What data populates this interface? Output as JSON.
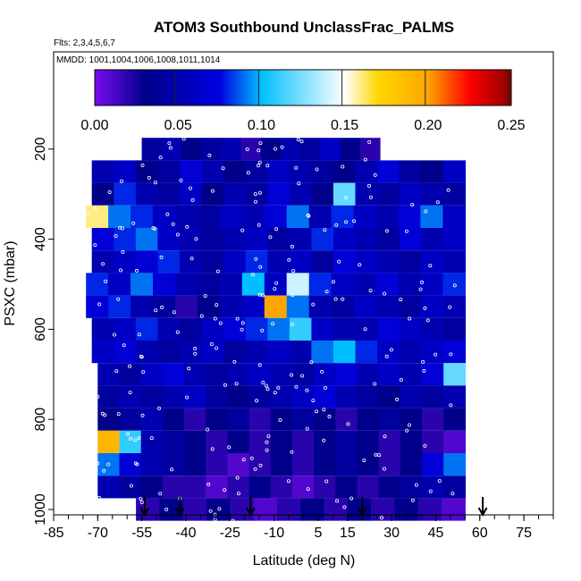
{
  "chart_data": {
    "type": "heatmap",
    "title": "ATOM3 Southbound UnclassFrac_PALMS",
    "subtitle": "Flts: 2,3,4,5,6,7",
    "note": "MMDD: 1001,1004,1006,1008,1011,1014",
    "xlabel": "Latitude (deg N)",
    "ylabel": "PSXC (mbar)",
    "xlim": [
      -85,
      85
    ],
    "ylim": [
      1000,
      0
    ],
    "x_ticks": [
      -85,
      -70,
      -55,
      -40,
      -25,
      -10,
      5,
      15,
      30,
      45,
      60,
      75
    ],
    "y_ticks": [
      200,
      400,
      600,
      800,
      1000
    ],
    "colorbar": {
      "range": [
        0,
        0.25
      ],
      "ticks": [
        "0.00",
        "0.05",
        "0.10",
        "0.15",
        "0.20",
        "0.25"
      ],
      "colors": [
        "#7a0bf0",
        "#00008b",
        "#0000e0",
        "#00bfff",
        "#ffffff",
        "#ffd700",
        "#ffa500",
        "#ff0000",
        "#8b0000"
      ]
    },
    "arrows_latitude": [
      -54,
      -42,
      -18,
      20,
      61
    ],
    "bins": [
      {
        "p": 200,
        "lat": [
          -55,
          26
        ],
        "values": [
          0.04,
          0.05,
          0.03,
          0.04,
          0.05,
          0.02,
          0.03,
          0.05,
          0.04,
          0.06,
          0.03,
          0.02
        ]
      },
      {
        "p": 250,
        "lat": [
          -72,
          55
        ],
        "values": [
          0.05,
          0.06,
          0.03,
          0.04,
          0.07,
          0.05,
          0.03,
          0.04,
          0.06,
          0.05,
          0.04,
          0.03,
          0.05,
          0.07,
          0.04,
          0.03,
          0.06
        ]
      },
      {
        "p": 300,
        "lat": [
          -72,
          55
        ],
        "values": [
          0.03,
          0.08,
          0.05,
          0.04,
          0.06,
          0.03,
          0.05,
          0.04,
          0.07,
          0.05,
          0.03,
          0.12,
          0.05,
          0.04,
          0.06,
          0.05,
          0.04
        ]
      },
      {
        "p": 350,
        "lat": [
          -74,
          55
        ],
        "values": [
          0.16,
          0.09,
          0.08,
          0.06,
          0.05,
          0.04,
          0.06,
          0.05,
          0.07,
          0.09,
          0.05,
          0.08,
          0.06,
          0.05,
          0.07,
          0.09,
          0.06
        ]
      },
      {
        "p": 400,
        "lat": [
          -72,
          55
        ],
        "values": [
          0.07,
          0.08,
          0.09,
          0.06,
          0.05,
          0.04,
          0.05,
          0.06,
          0.04,
          0.05,
          0.08,
          0.06,
          0.05,
          0.04,
          0.07,
          0.05,
          0.06
        ]
      },
      {
        "p": 450,
        "lat": [
          -72,
          55
        ],
        "values": [
          0.05,
          0.06,
          0.07,
          0.08,
          0.05,
          0.04,
          0.06,
          0.08,
          0.05,
          0.06,
          0.04,
          0.07,
          0.06,
          0.05,
          0.04,
          0.06,
          0.05
        ]
      },
      {
        "p": 500,
        "lat": [
          -74,
          55
        ],
        "values": [
          0.08,
          0.06,
          0.09,
          0.07,
          0.05,
          0.04,
          0.05,
          0.1,
          0.06,
          0.14,
          0.08,
          0.06,
          0.05,
          0.07,
          0.05,
          0.06,
          0.08
        ]
      },
      {
        "p": 550,
        "lat": [
          -74,
          55
        ],
        "values": [
          0.07,
          0.08,
          0.05,
          0.04,
          0.02,
          0.03,
          0.05,
          0.06,
          0.2,
          0.09,
          0.05,
          0.04,
          0.06,
          0.05,
          0.04,
          0.06,
          0.05
        ]
      },
      {
        "p": 600,
        "lat": [
          -72,
          55
        ],
        "values": [
          0.05,
          0.06,
          0.08,
          0.05,
          0.04,
          0.06,
          0.07,
          0.08,
          0.09,
          0.11,
          0.06,
          0.05,
          0.05,
          0.07,
          0.06,
          0.05,
          0.04
        ]
      },
      {
        "p": 650,
        "lat": [
          -72,
          55
        ],
        "values": [
          0.06,
          0.07,
          0.05,
          0.04,
          0.05,
          0.06,
          0.04,
          0.05,
          0.06,
          0.05,
          0.09,
          0.1,
          0.08,
          0.06,
          0.05,
          0.06,
          0.07
        ]
      },
      {
        "p": 700,
        "lat": [
          -70,
          55
        ],
        "values": [
          0.05,
          0.04,
          0.06,
          0.07,
          0.05,
          0.04,
          0.05,
          0.06,
          0.05,
          0.04,
          0.06,
          0.07,
          0.05,
          0.06,
          0.05,
          0.07,
          0.12
        ]
      },
      {
        "p": 750,
        "lat": [
          -70,
          55
        ],
        "values": [
          0.04,
          0.05,
          0.04,
          0.05,
          0.06,
          0.04,
          0.03,
          0.04,
          0.05,
          0.06,
          0.07,
          0.05,
          0.04,
          0.03,
          0.05,
          0.04,
          0.05
        ]
      },
      {
        "p": 800,
        "lat": [
          -70,
          55
        ],
        "values": [
          0.03,
          0.04,
          0.05,
          0.03,
          0.02,
          0.03,
          0.04,
          0.02,
          0.03,
          0.04,
          0.03,
          0.02,
          0.03,
          0.04,
          0.03,
          0.02,
          0.03
        ]
      },
      {
        "p": 850,
        "lat": [
          -70,
          55
        ],
        "values": [
          0.19,
          0.11,
          0.05,
          0.04,
          0.03,
          0.02,
          0.03,
          0.02,
          0.03,
          0.02,
          0.03,
          0.04,
          0.03,
          0.02,
          0.03,
          0.02,
          0.01
        ]
      },
      {
        "p": 900,
        "lat": [
          -70,
          55
        ],
        "values": [
          0.09,
          0.07,
          0.05,
          0.04,
          0.03,
          0.02,
          0.01,
          0.02,
          0.03,
          0.02,
          0.03,
          0.04,
          0.03,
          0.02,
          0.03,
          0.07,
          0.09
        ]
      },
      {
        "p": 950,
        "lat": [
          -70,
          55
        ],
        "values": [
          0.05,
          0.04,
          0.03,
          0.02,
          0.02,
          0.01,
          0.02,
          0.03,
          0.02,
          0.01,
          0.02,
          0.03,
          0.02,
          0.03,
          0.04,
          0.05,
          0.04
        ]
      },
      {
        "p": 1000,
        "lat": [
          -57,
          55
        ],
        "values": [
          0.02,
          0.03,
          0.02,
          0.03,
          0.02,
          0.01,
          0.02,
          0.03,
          0.02,
          0.03,
          0.02,
          0.03,
          0.02,
          0.01
        ]
      }
    ]
  }
}
